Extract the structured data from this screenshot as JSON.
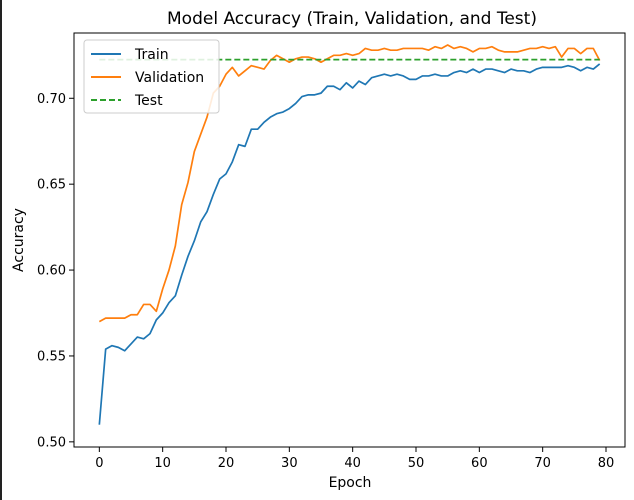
{
  "chart_data": {
    "type": "line",
    "title": "Model Accuracy (Train, Validation, and Test)",
    "xlabel": "Epoch",
    "ylabel": "Accuracy",
    "xlim": [
      -4,
      83
    ],
    "ylim": [
      0.497,
      0.738
    ],
    "xticks": [
      0,
      10,
      20,
      30,
      40,
      50,
      60,
      70,
      80
    ],
    "yticks": [
      0.5,
      0.55,
      0.6,
      0.65,
      0.7
    ],
    "ytick_labels": [
      "0.50",
      "0.55",
      "0.60",
      "0.65",
      "0.70"
    ],
    "grid": false,
    "legend_position": "upper-left",
    "series": [
      {
        "name": "Train",
        "color": "#1f77b4",
        "style": "solid",
        "x": [
          0,
          1,
          2,
          3,
          4,
          5,
          6,
          7,
          8,
          9,
          10,
          11,
          12,
          13,
          14,
          15,
          16,
          17,
          18,
          19,
          20,
          21,
          22,
          23,
          24,
          25,
          26,
          27,
          28,
          29,
          30,
          31,
          32,
          33,
          34,
          35,
          36,
          37,
          38,
          39,
          40,
          41,
          42,
          43,
          44,
          45,
          46,
          47,
          48,
          49,
          50,
          51,
          52,
          53,
          54,
          55,
          56,
          57,
          58,
          59,
          60,
          61,
          62,
          63,
          64,
          65,
          66,
          67,
          68,
          69,
          70,
          71,
          72,
          73,
          74,
          75,
          76,
          77,
          78,
          79
        ],
        "values": [
          0.51,
          0.554,
          0.556,
          0.555,
          0.553,
          0.557,
          0.561,
          0.56,
          0.563,
          0.571,
          0.575,
          0.581,
          0.585,
          0.597,
          0.608,
          0.617,
          0.628,
          0.634,
          0.644,
          0.653,
          0.656,
          0.663,
          0.673,
          0.672,
          0.682,
          0.682,
          0.686,
          0.689,
          0.691,
          0.692,
          0.694,
          0.697,
          0.701,
          0.702,
          0.702,
          0.703,
          0.707,
          0.707,
          0.705,
          0.709,
          0.706,
          0.71,
          0.708,
          0.712,
          0.713,
          0.714,
          0.713,
          0.714,
          0.713,
          0.711,
          0.711,
          0.713,
          0.713,
          0.714,
          0.713,
          0.713,
          0.715,
          0.716,
          0.715,
          0.717,
          0.715,
          0.717,
          0.717,
          0.716,
          0.715,
          0.717,
          0.716,
          0.716,
          0.715,
          0.717,
          0.718,
          0.718,
          0.718,
          0.718,
          0.719,
          0.718,
          0.716,
          0.718,
          0.717,
          0.72
        ]
      },
      {
        "name": "Validation",
        "color": "#ff7f0e",
        "style": "solid",
        "x": [
          0,
          1,
          2,
          3,
          4,
          5,
          6,
          7,
          8,
          9,
          10,
          11,
          12,
          13,
          14,
          15,
          16,
          17,
          18,
          19,
          20,
          21,
          22,
          23,
          24,
          25,
          26,
          27,
          28,
          29,
          30,
          31,
          32,
          33,
          34,
          35,
          36,
          37,
          38,
          39,
          40,
          41,
          42,
          43,
          44,
          45,
          46,
          47,
          48,
          49,
          50,
          51,
          52,
          53,
          54,
          55,
          56,
          57,
          58,
          59,
          60,
          61,
          62,
          63,
          64,
          65,
          66,
          67,
          68,
          69,
          70,
          71,
          72,
          73,
          74,
          75,
          76,
          77,
          78,
          79
        ],
        "values": [
          0.57,
          0.572,
          0.572,
          0.572,
          0.572,
          0.574,
          0.574,
          0.58,
          0.58,
          0.576,
          0.589,
          0.6,
          0.614,
          0.638,
          0.651,
          0.669,
          0.679,
          0.689,
          0.703,
          0.707,
          0.714,
          0.718,
          0.713,
          0.716,
          0.719,
          0.718,
          0.717,
          0.722,
          0.725,
          0.723,
          0.721,
          0.723,
          0.724,
          0.724,
          0.723,
          0.721,
          0.723,
          0.725,
          0.725,
          0.726,
          0.725,
          0.726,
          0.729,
          0.728,
          0.728,
          0.729,
          0.728,
          0.728,
          0.729,
          0.729,
          0.729,
          0.729,
          0.728,
          0.73,
          0.729,
          0.731,
          0.729,
          0.73,
          0.729,
          0.727,
          0.729,
          0.729,
          0.73,
          0.728,
          0.727,
          0.727,
          0.727,
          0.728,
          0.729,
          0.729,
          0.73,
          0.729,
          0.73,
          0.724,
          0.729,
          0.729,
          0.726,
          0.729,
          0.729,
          0.722
        ]
      },
      {
        "name": "Test",
        "color": "#2ca02c",
        "style": "dashed",
        "x": [
          0,
          79
        ],
        "values": [
          0.7225,
          0.7225
        ]
      }
    ]
  }
}
